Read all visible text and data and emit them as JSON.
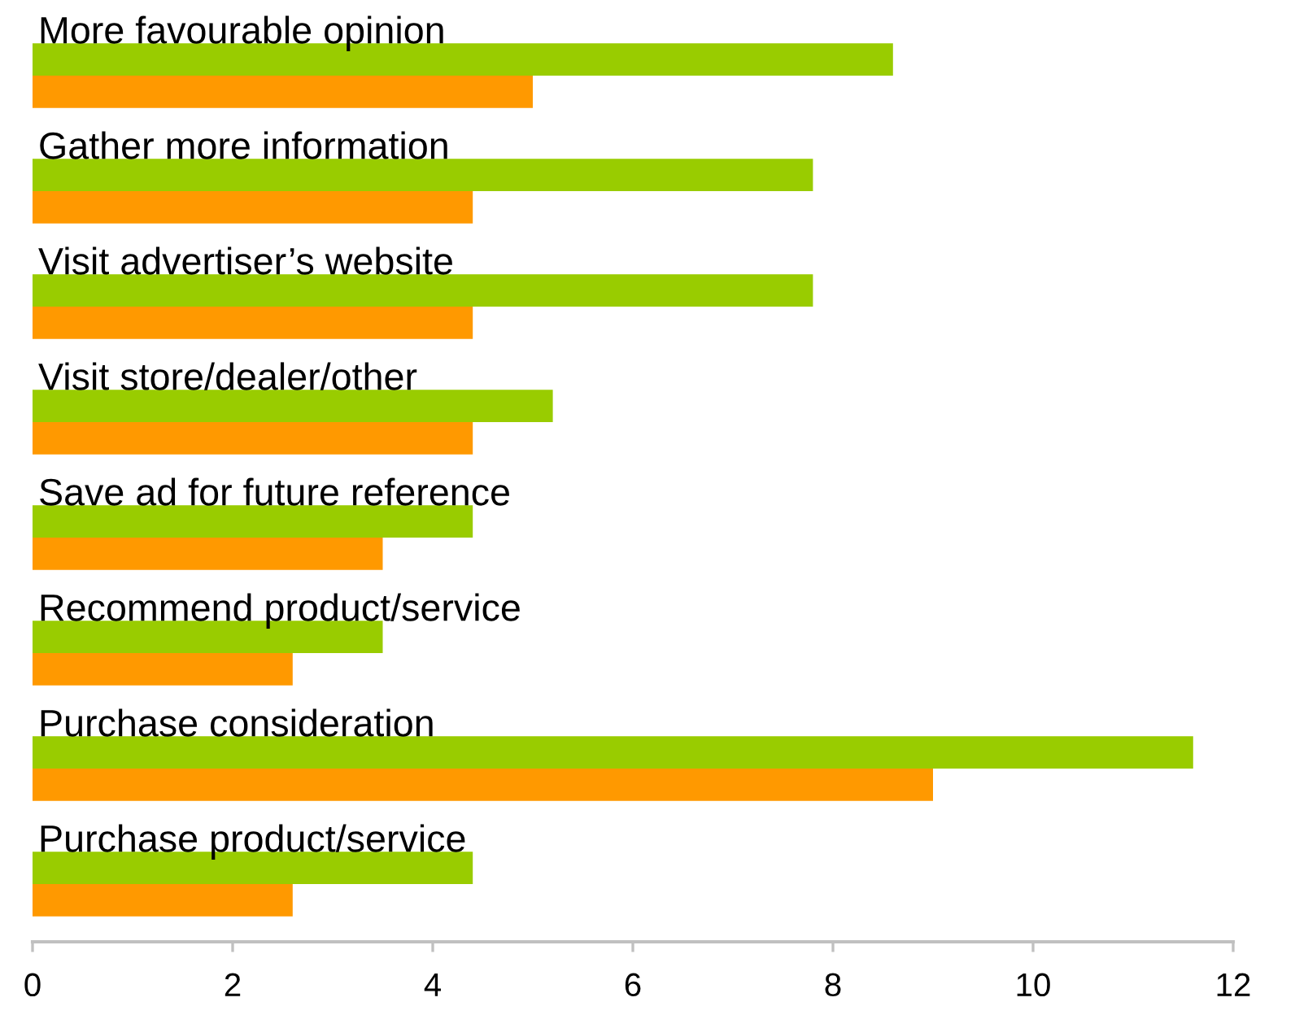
{
  "chart_data": {
    "type": "bar",
    "orientation": "horizontal",
    "categories": [
      "More favourable opinion",
      "Gather more information",
      "Visit advertiser’s website",
      "Visit store/dealer/other",
      "Save ad for future reference",
      "Recommend product/service",
      "Purchase consideration",
      "Purchase product/service"
    ],
    "series": [
      {
        "color": "#99cc00",
        "values": [
          8.6,
          7.8,
          7.8,
          5.2,
          4.4,
          3.5,
          11.6,
          4.4
        ]
      },
      {
        "color": "#ff9900",
        "values": [
          5.0,
          4.4,
          4.4,
          4.4,
          3.5,
          2.6,
          9.0,
          2.6
        ]
      }
    ],
    "xlim": [
      0,
      12
    ],
    "xticks": [
      0,
      2,
      4,
      6,
      8,
      10,
      12
    ]
  }
}
